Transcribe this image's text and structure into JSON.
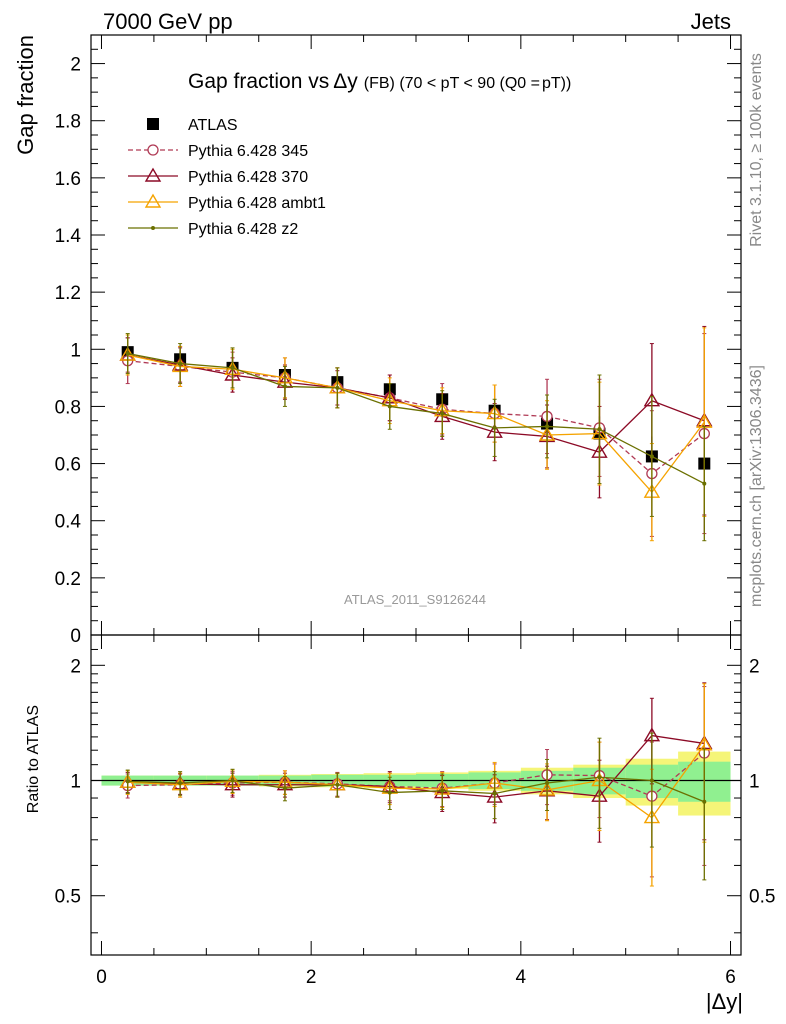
{
  "header": {
    "left": "7000 GeV pp",
    "right": "Jets"
  },
  "side_labels": {
    "rivet": "Rivet 3.1.10, ≥ 100k events",
    "mcplots": "mcplots.cern.ch [arXiv:1306.3436]"
  },
  "watermark": "ATLAS_2011_S9126244",
  "title": {
    "main": "Gap fraction vs",
    "delta": "Δy",
    "suffix": "(FB) (70 < pT <  90 (Q0 =",
    "bar": "pT",
    "close": "))"
  },
  "axes": {
    "ylabel_top": "Gap fraction",
    "ylabel_bottom": "Ratio to ATLAS",
    "xlabel": "|Δy|"
  },
  "colors": {
    "atlas": "#000000",
    "p345": "#b03a55",
    "p370": "#8c0a26",
    "ambt1": "#f5a300",
    "z2": "#6b7000",
    "band_inner": "#90f090",
    "band_outer": "#f5f578"
  },
  "chart_data": [
    {
      "type": "scatter",
      "panel": "main",
      "title": "Gap fraction vs Δy (FB) (70 < pT <  90 (Q0 = pT))",
      "xlabel": "|Δy|",
      "ylabel": "Gap fraction",
      "xlim": [
        -0.1,
        6.1
      ],
      "ylim": [
        0,
        2.1
      ],
      "y_ticks": [
        0,
        0.2,
        0.4,
        0.6,
        0.8,
        1,
        1.2,
        1.4,
        1.6,
        1.8,
        2
      ],
      "y_tick_labels": [
        "0",
        "0.2",
        "0.4",
        "0.6",
        "0.8",
        "1",
        "1.2",
        "1.4",
        "1.6",
        "1.8",
        "2"
      ],
      "legend_position": "top-left",
      "x": [
        0.25,
        0.75,
        1.25,
        1.75,
        2.25,
        2.75,
        3.25,
        3.75,
        4.25,
        4.75,
        5.25,
        5.75
      ],
      "series": [
        {
          "name": "ATLAS",
          "values": [
            0.99,
            0.965,
            0.935,
            0.91,
            0.885,
            0.86,
            0.825,
            0.785,
            0.74,
            0.705,
            0.625,
            0.6
          ],
          "errors": [
            0.03,
            0.03,
            0.03,
            0.03,
            0.03,
            0.03,
            0.035,
            0.04,
            0.05,
            0.06,
            0.07,
            0.08
          ]
        },
        {
          "name": "Pythia 6.428 345",
          "values": [
            0.96,
            0.94,
            0.92,
            0.9,
            0.865,
            0.83,
            0.79,
            0.775,
            0.765,
            0.725,
            0.565,
            0.705
          ],
          "errors": [
            0.08,
            0.07,
            0.07,
            0.07,
            0.07,
            0.08,
            0.09,
            0.1,
            0.13,
            0.17,
            0.22,
            0.35
          ]
        },
        {
          "name": "Pythia 6.428 370",
          "values": [
            0.98,
            0.945,
            0.91,
            0.885,
            0.865,
            0.83,
            0.765,
            0.71,
            0.695,
            0.64,
            0.82,
            0.75
          ],
          "errors": [
            0.06,
            0.06,
            0.06,
            0.06,
            0.06,
            0.08,
            0.08,
            0.1,
            0.11,
            0.16,
            0.2,
            0.33
          ]
        },
        {
          "name": "Pythia 6.428 ambt1",
          "values": [
            0.98,
            0.94,
            0.93,
            0.9,
            0.865,
            0.82,
            0.785,
            0.775,
            0.7,
            0.705,
            0.5,
            0.745
          ],
          "errors": [
            0.07,
            0.07,
            0.07,
            0.07,
            0.07,
            0.08,
            0.08,
            0.1,
            0.12,
            0.18,
            0.17,
            0.33
          ]
        },
        {
          "name": "Pythia 6.428 z2",
          "values": [
            0.985,
            0.95,
            0.935,
            0.87,
            0.865,
            0.8,
            0.775,
            0.725,
            0.73,
            0.72,
            0.625,
            0.53
          ],
          "errors": [
            0.07,
            0.07,
            0.07,
            0.07,
            0.07,
            0.08,
            0.08,
            0.1,
            0.11,
            0.19,
            0.21,
            0.2
          ]
        }
      ]
    },
    {
      "type": "scatter",
      "panel": "ratio",
      "xlabel": "|Δy|",
      "ylabel": "Ratio to ATLAS",
      "xlim": [
        -0.1,
        6.1
      ],
      "ylim": [
        0.35,
        2.4
      ],
      "log_y": true,
      "x_ticks": [
        0,
        2,
        4,
        6
      ],
      "x_tick_labels": [
        "0",
        "2",
        "4",
        "6"
      ],
      "y_ticks": [
        0.5,
        1,
        2
      ],
      "y_tick_labels": [
        "0.5",
        "1",
        "2"
      ],
      "x": [
        0.25,
        0.75,
        1.25,
        1.75,
        2.25,
        2.75,
        3.25,
        3.75,
        4.25,
        4.75,
        5.25,
        5.75
      ],
      "band": {
        "inner": [
          0.03,
          0.03,
          0.03,
          0.03,
          0.035,
          0.035,
          0.04,
          0.05,
          0.06,
          0.08,
          0.1,
          0.12
        ],
        "outer": [
          0.03,
          0.03,
          0.03,
          0.035,
          0.04,
          0.045,
          0.05,
          0.06,
          0.08,
          0.1,
          0.14,
          0.19
        ]
      },
      "series": [
        {
          "name": "Pythia 6.428 345",
          "values": [
            0.97,
            0.975,
            0.985,
            0.99,
            0.98,
            0.965,
            0.955,
            0.985,
            1.035,
            1.03,
            0.91,
            1.18
          ],
          "errors": [
            0.07,
            0.07,
            0.07,
            0.07,
            0.07,
            0.08,
            0.1,
            0.12,
            0.17,
            0.23,
            0.35,
            0.58
          ]
        },
        {
          "name": "Pythia 6.428 370",
          "values": [
            0.99,
            0.98,
            0.975,
            0.975,
            0.975,
            0.965,
            0.93,
            0.905,
            0.94,
            0.91,
            1.31,
            1.25
          ],
          "errors": [
            0.06,
            0.06,
            0.07,
            0.07,
            0.07,
            0.09,
            0.1,
            0.13,
            0.15,
            0.22,
            0.33,
            0.55
          ]
        },
        {
          "name": "Pythia 6.428 ambt1",
          "values": [
            0.99,
            0.975,
            0.995,
            0.99,
            0.975,
            0.955,
            0.95,
            0.985,
            0.945,
            1.0,
            0.8,
            1.24
          ],
          "errors": [
            0.07,
            0.07,
            0.07,
            0.07,
            0.07,
            0.09,
            0.1,
            0.13,
            0.16,
            0.26,
            0.27,
            0.55
          ]
        },
        {
          "name": "Pythia 6.428 z2",
          "values": [
            0.995,
            0.985,
            1.0,
            0.955,
            0.975,
            0.93,
            0.94,
            0.925,
            0.985,
            1.02,
            1.0,
            0.88
          ],
          "errors": [
            0.07,
            0.07,
            0.07,
            0.07,
            0.07,
            0.09,
            0.1,
            0.13,
            0.15,
            0.27,
            0.33,
            0.33
          ]
        }
      ]
    }
  ]
}
